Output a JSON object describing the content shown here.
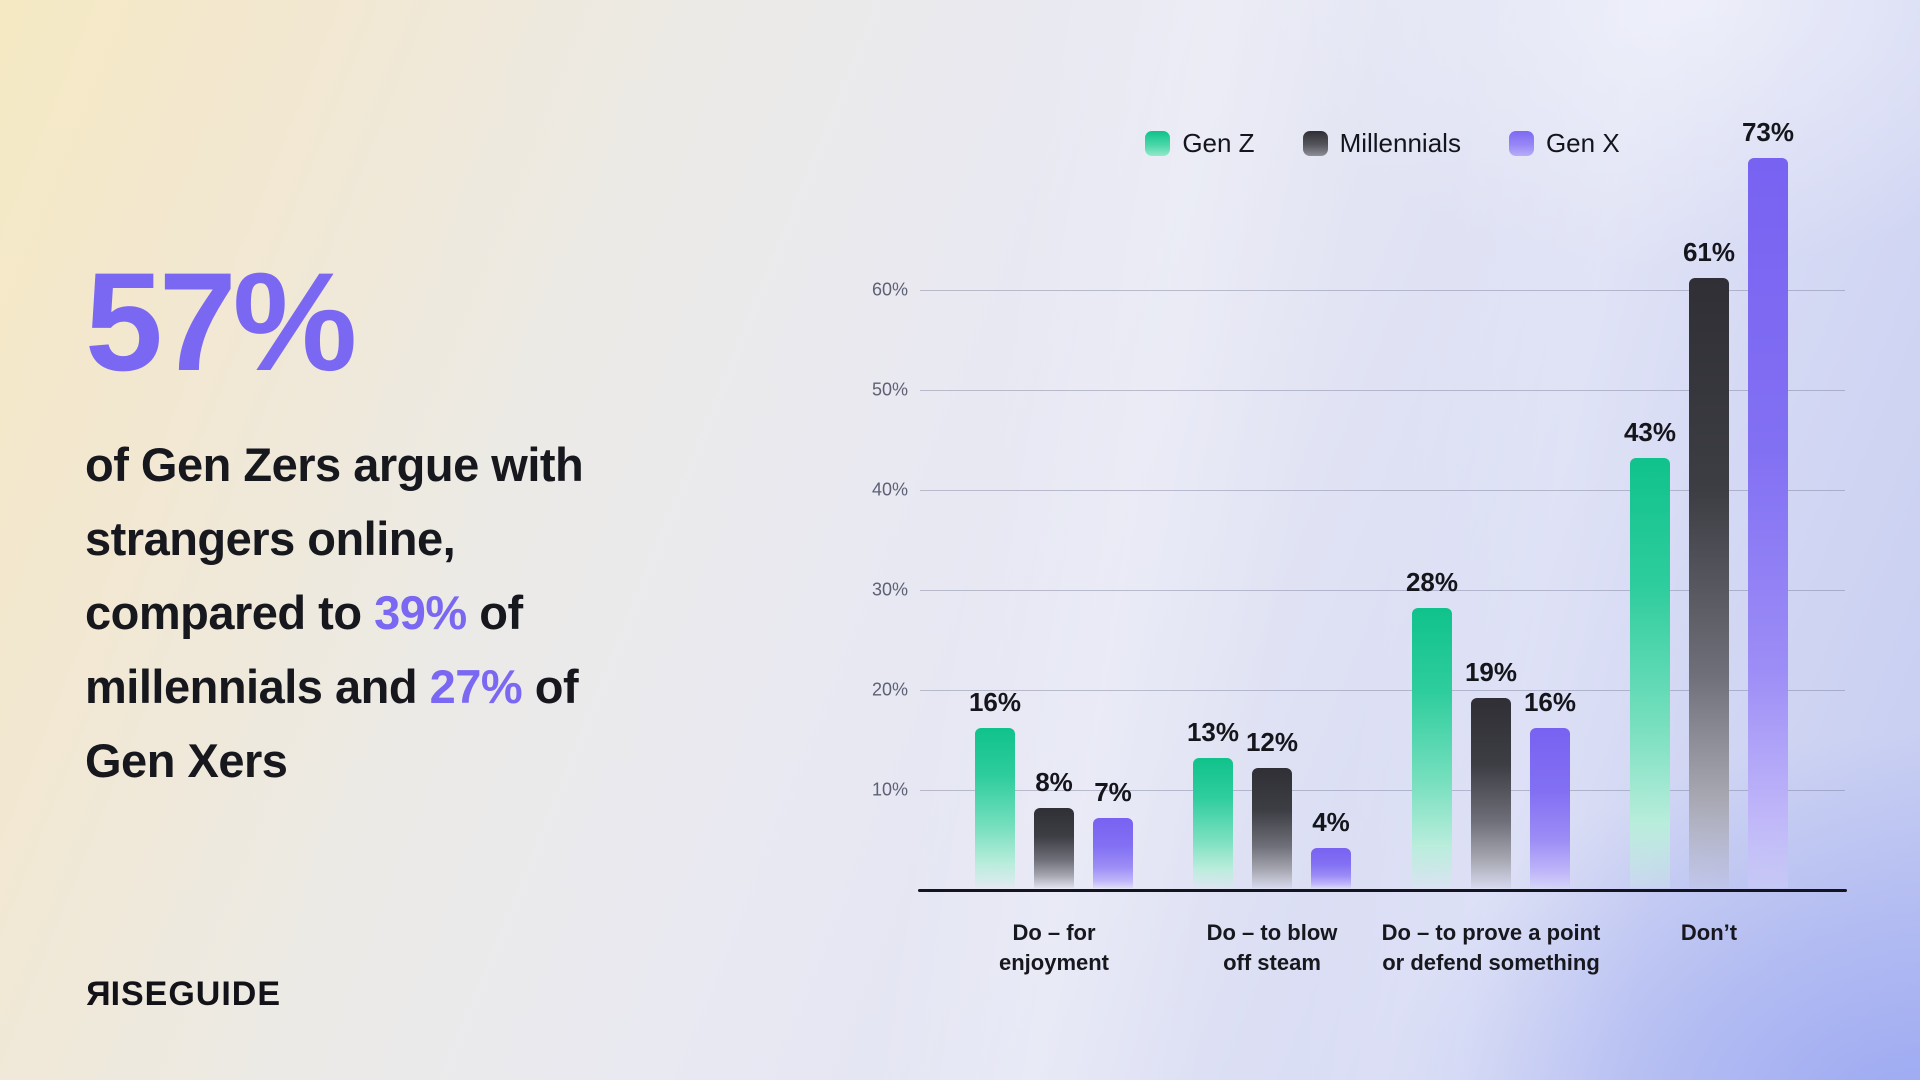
{
  "colors": {
    "accent_purple": "#7B68F2",
    "text_dark": "#17171E",
    "series_green": "#10C28B",
    "series_dark": "#2F2F35",
    "series_purple": "#7862F2",
    "background_top_left": "#F4E8C2",
    "background_bottom_right": "#A9B2F2"
  },
  "headline": {
    "stat": "57%",
    "lines": [
      [
        {
          "t": "of Gen Zers argue with",
          "hl": false
        }
      ],
      [
        {
          "t": "strangers online,",
          "hl": false
        }
      ],
      [
        {
          "t": "compared to ",
          "hl": false
        },
        {
          "t": "39%",
          "hl": true
        },
        {
          "t": " of",
          "hl": false
        }
      ],
      [
        {
          "t": "millennials and ",
          "hl": false
        },
        {
          "t": "27%",
          "hl": true
        },
        {
          "t": " of",
          "hl": false
        }
      ],
      [
        {
          "t": "Gen Xers",
          "hl": false
        }
      ]
    ]
  },
  "logo": {
    "brand": "RISEGUIDE",
    "first_letter": "R",
    "rest": "ISEGUIDE"
  },
  "chart_data": {
    "type": "bar",
    "title": "",
    "xlabel": "",
    "ylabel": "",
    "categories": [
      "Do – for enjoyment",
      "Do – to blow off steam",
      "Do – to prove a point or defend something",
      "Don’t"
    ],
    "category_lines": [
      [
        "Do – for",
        "enjoyment"
      ],
      [
        "Do – to blow",
        "off steam"
      ],
      [
        "Do – to prove a point",
        "or defend something"
      ],
      [
        "Don’t"
      ]
    ],
    "series": [
      {
        "name": "Gen Z",
        "key": "genz",
        "values": [
          16,
          13,
          28,
          43
        ]
      },
      {
        "name": "Millennials",
        "key": "mill",
        "values": [
          8,
          12,
          19,
          61
        ]
      },
      {
        "name": "Gen X",
        "key": "genx",
        "values": [
          7,
          4,
          16,
          73
        ]
      }
    ],
    "value_suffix": "%",
    "yticks": [
      "10%",
      "20%",
      "30%",
      "40%",
      "50%",
      "60%"
    ],
    "ytick_values": [
      10,
      20,
      30,
      40,
      50,
      60
    ],
    "ylim": [
      0,
      75
    ],
    "grid": true,
    "legend_position": "top"
  }
}
